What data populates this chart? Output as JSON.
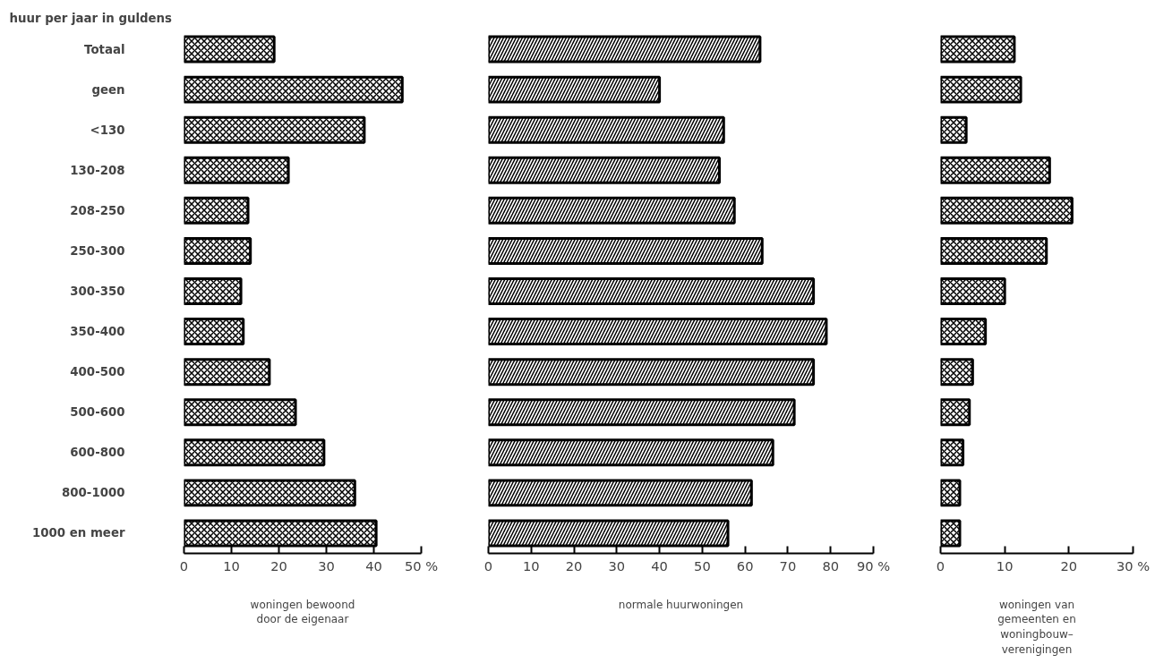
{
  "chart_data": [
    {
      "type": "bar",
      "orientation": "horizontal",
      "ylabel": "huur per jaar in guldens",
      "xlabel": "woningen bewoond\ndoor de eigenaar",
      "categories": [
        "Totaal",
        "geen",
        "<130",
        "130-208",
        "208-250",
        "250-300",
        "300-350",
        "350-400",
        "400-500",
        "500-600",
        "600-800",
        "800-1000",
        "1000 en meer"
      ],
      "series": [
        {
          "color": "#000000",
          "values": [
            19,
            46,
            38,
            22,
            13.5,
            14,
            12,
            12.5,
            18,
            23.5,
            29.5,
            36,
            40.5
          ]
        }
      ],
      "xlim": [
        0,
        50
      ],
      "xticks": [
        0,
        10,
        20,
        30,
        40,
        {
          "value": 50,
          "label": "50 %"
        }
      ],
      "grid": false
    },
    {
      "type": "bar",
      "orientation": "horizontal",
      "xlabel": "normale huurwoningen",
      "tick_labels": "x",
      "series": [
        {
          "color": "#000000",
          "values": [
            63.5,
            40,
            55,
            54,
            57.5,
            64,
            76,
            79,
            76,
            71.5,
            66.5,
            61.5,
            56
          ]
        }
      ],
      "xlim": [
        0,
        90
      ],
      "xticks": [
        0,
        10,
        20,
        30,
        40,
        50,
        60,
        70,
        80,
        {
          "value": 90,
          "label": "90 %"
        }
      ],
      "grid": false
    },
    {
      "type": "bar",
      "orientation": "horizontal",
      "xlabel": "woningen van\ngemeenten en\nwoningbouw–\nverenigingen",
      "tick_labels": "x",
      "series": [
        {
          "color": "#000000",
          "values": [
            11.5,
            12.5,
            4,
            17,
            20.5,
            16.5,
            10,
            7,
            5,
            4.5,
            3.5,
            3,
            3
          ]
        }
      ],
      "xlim": [
        0,
        30
      ],
      "xticks": [
        0,
        10,
        20,
        {
          "value": 30,
          "label": "30 %"
        }
      ],
      "grid": false
    }
  ]
}
